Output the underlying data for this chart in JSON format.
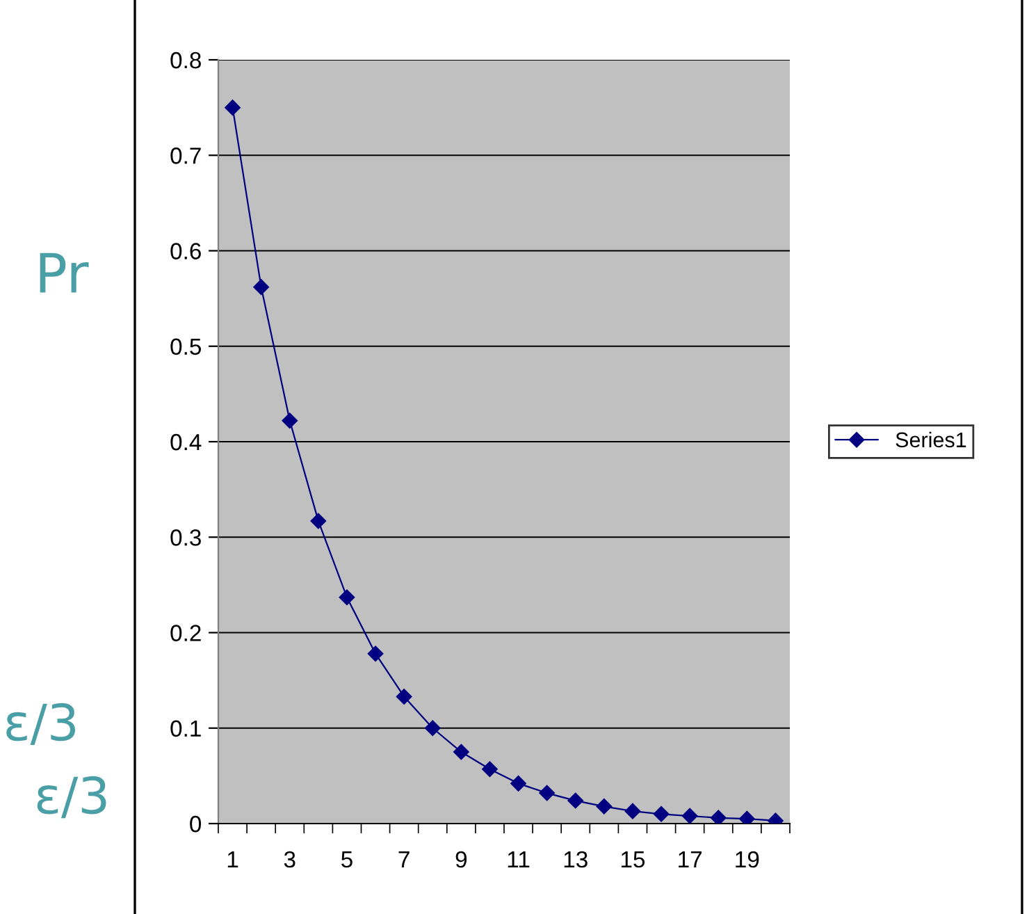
{
  "chart_data": {
    "type": "line",
    "categories": [
      "1",
      null,
      "3",
      null,
      "5",
      null,
      "7",
      null,
      "9",
      null,
      "11",
      null,
      "13",
      null,
      "15",
      null,
      "17",
      null,
      "19",
      null
    ],
    "series": [
      {
        "name": "Series1",
        "color": "#000080",
        "values": [
          0.75,
          0.562,
          0.422,
          0.317,
          0.237,
          0.178,
          0.133,
          0.1,
          0.075,
          0.057,
          0.042,
          0.032,
          0.024,
          0.018,
          0.013,
          0.01,
          0.008,
          0.006,
          0.005,
          0.003
        ]
      }
    ],
    "ylim": [
      0,
      0.8
    ],
    "yticks": [
      0,
      0.1,
      0.2,
      0.3,
      0.4,
      0.5,
      0.6,
      0.7,
      0.8
    ],
    "grid": "y",
    "legend": "right",
    "marker": "diamond",
    "line_style": "solid",
    "annotations": [
      "Pr",
      "ε/3",
      "ε/3"
    ]
  }
}
